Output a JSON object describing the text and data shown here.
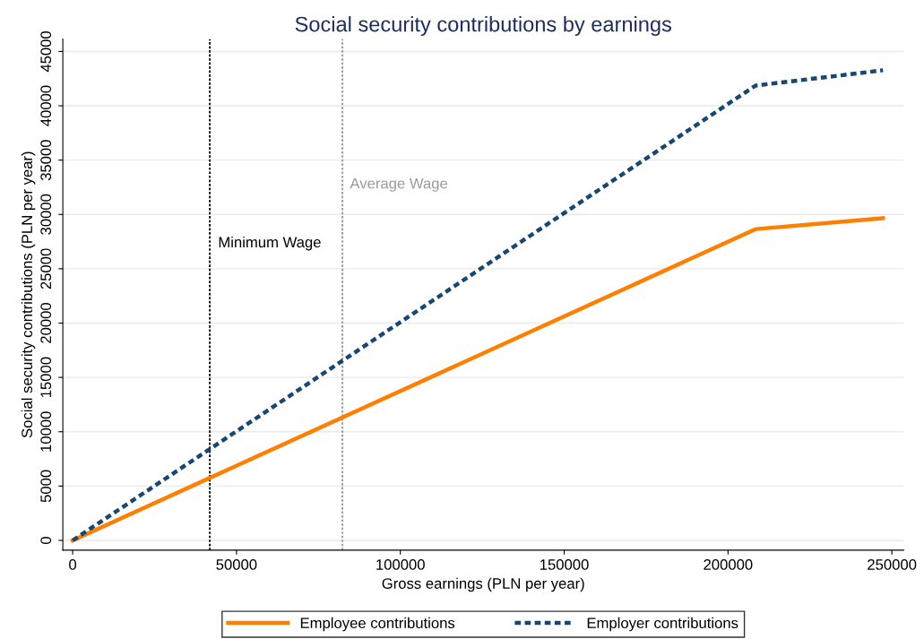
{
  "chart_data": {
    "type": "line",
    "title": "Social security contributions by earnings",
    "xlabel": "Gross earnings (PLN per year)",
    "ylabel": "Social security contributions (PLN per year)",
    "series": [
      {
        "name": "Employee contributions",
        "color": "#ff8000",
        "x": [
          0,
          208400,
          247300
        ],
        "values": [
          0,
          28650,
          29650
        ],
        "line_style": "solid"
      },
      {
        "name": "Employer contributions",
        "color": "#1a476f",
        "x": [
          0,
          208400,
          247300
        ],
        "values": [
          0,
          41860,
          43270
        ],
        "line_style": "dashed"
      }
    ],
    "xlim": [
      -3000,
      253600
    ],
    "xticks": [
      0,
      50000,
      100000,
      150000,
      200000,
      250000
    ],
    "ylim": [
      -900,
      46150
    ],
    "yticks": [
      0,
      5000,
      10000,
      15000,
      20000,
      25000,
      30000,
      35000,
      40000,
      45000
    ],
    "ref_lines": [
      {
        "axis": "x",
        "value": 41850,
        "label": "Minimum Wage",
        "color": "#000000",
        "line_style": "dashed"
      },
      {
        "axis": "x",
        "value": 82330,
        "label": "Average Wage",
        "color": "#999999",
        "line_style": "dashed"
      }
    ],
    "grid": "y",
    "legend": "bottom",
    "marker": "none"
  }
}
